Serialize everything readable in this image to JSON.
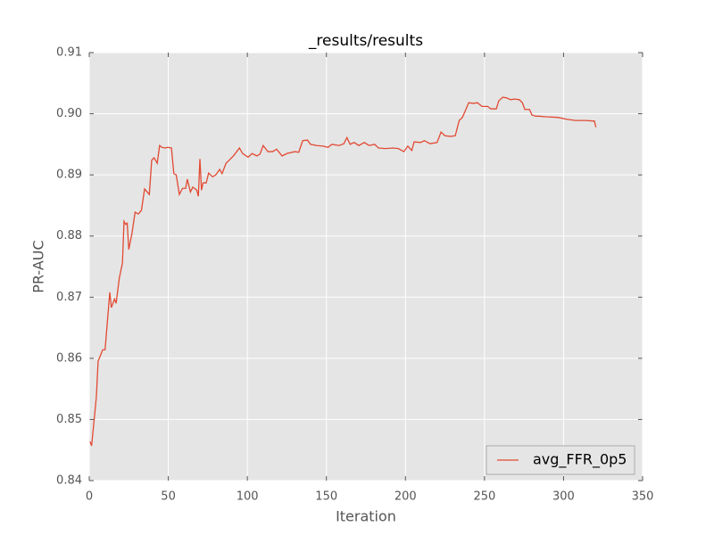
{
  "chart_data": {
    "type": "line",
    "title": "_results/results",
    "xlabel": "Iteration",
    "ylabel": "PR-AUC",
    "xlim": [
      0,
      350
    ],
    "xticks": [
      0,
      50,
      100,
      150,
      200,
      250,
      300,
      350
    ],
    "ylim": [
      0.84,
      0.91
    ],
    "yticks": [
      0.84,
      0.85,
      0.86,
      0.87,
      0.88,
      0.89,
      {
        "value": 0.9,
        "label": "0.90"
      },
      0.91
    ],
    "grid": true,
    "legend": "lower right",
    "x": [
      0.5,
      1.5,
      4.5,
      5.6,
      8.5,
      10,
      13,
      14,
      16,
      17,
      19,
      21,
      22,
      23,
      24,
      25,
      27,
      29,
      31,
      33,
      35,
      38,
      39.5,
      41,
      43,
      44.5,
      46,
      48,
      49.5,
      52,
      53.5,
      55,
      57,
      59,
      61,
      62,
      64,
      65.5,
      68,
      69,
      70,
      71,
      72,
      74,
      75.5,
      78,
      80,
      82.5,
      84,
      86.5,
      88.5,
      91.5,
      95,
      97,
      100.5,
      103,
      106,
      108,
      110,
      113,
      116,
      118.5,
      122,
      125,
      130,
      132.5,
      135,
      138,
      140,
      144,
      148,
      151,
      153.5,
      158,
      161,
      163,
      165,
      167.5,
      170.5,
      174,
      177,
      180.5,
      183,
      187.5,
      192,
      195.5,
      199,
      201.5,
      204,
      205.5,
      209.5,
      212,
      215.5,
      220,
      222.5,
      225,
      228.5,
      231.5,
      234,
      236,
      237.7,
      240,
      243,
      245.5,
      248.5,
      252,
      254,
      257.5,
      259,
      261.5,
      264,
      266.5,
      269,
      272,
      274,
      275.5,
      278.5,
      280,
      282.5,
      284.5,
      289,
      296.5,
      302,
      307.5,
      314,
      319.5,
      320.5
    ],
    "series": [
      {
        "name": "avg_FFR_0p5",
        "color": "#e24a33",
        "values": [
          0.8464,
          0.8457,
          0.8537,
          0.8595,
          0.8614,
          0.8614,
          0.8708,
          0.8683,
          0.8697,
          0.869,
          0.8731,
          0.8756,
          0.8824,
          0.8819,
          0.8821,
          0.8778,
          0.8804,
          0.8839,
          0.8836,
          0.8842,
          0.8877,
          0.8868,
          0.8924,
          0.8928,
          0.8919,
          0.8948,
          0.8945,
          0.8944,
          0.8945,
          0.8944,
          0.8902,
          0.89,
          0.8868,
          0.8878,
          0.8878,
          0.8893,
          0.8872,
          0.888,
          0.8875,
          0.8865,
          0.8926,
          0.8875,
          0.8887,
          0.8887,
          0.8903,
          0.8897,
          0.89,
          0.8909,
          0.8902,
          0.8919,
          0.8924,
          0.8932,
          0.8944,
          0.8935,
          0.8929,
          0.8935,
          0.8931,
          0.8934,
          0.8948,
          0.8938,
          0.8938,
          0.8942,
          0.8931,
          0.8935,
          0.8938,
          0.8937,
          0.8956,
          0.8957,
          0.895,
          0.8948,
          0.8947,
          0.8945,
          0.895,
          0.8948,
          0.8951,
          0.8961,
          0.895,
          0.8953,
          0.8948,
          0.8953,
          0.8948,
          0.895,
          0.8944,
          0.8943,
          0.8944,
          0.8943,
          0.8938,
          0.8947,
          0.894,
          0.8954,
          0.8953,
          0.8956,
          0.8951,
          0.8953,
          0.897,
          0.8964,
          0.8963,
          0.8964,
          0.8989,
          0.8994,
          0.9004,
          0.9018,
          0.9017,
          0.9018,
          0.9012,
          0.9012,
          0.9008,
          0.9008,
          0.9021,
          0.9027,
          0.9026,
          0.9023,
          0.9024,
          0.9023,
          0.9018,
          0.9007,
          0.9007,
          0.8998,
          0.8996,
          0.8996,
          0.8995,
          0.8994,
          0.8991,
          0.8989,
          0.8989,
          0.8988,
          0.8978
        ]
      }
    ]
  }
}
